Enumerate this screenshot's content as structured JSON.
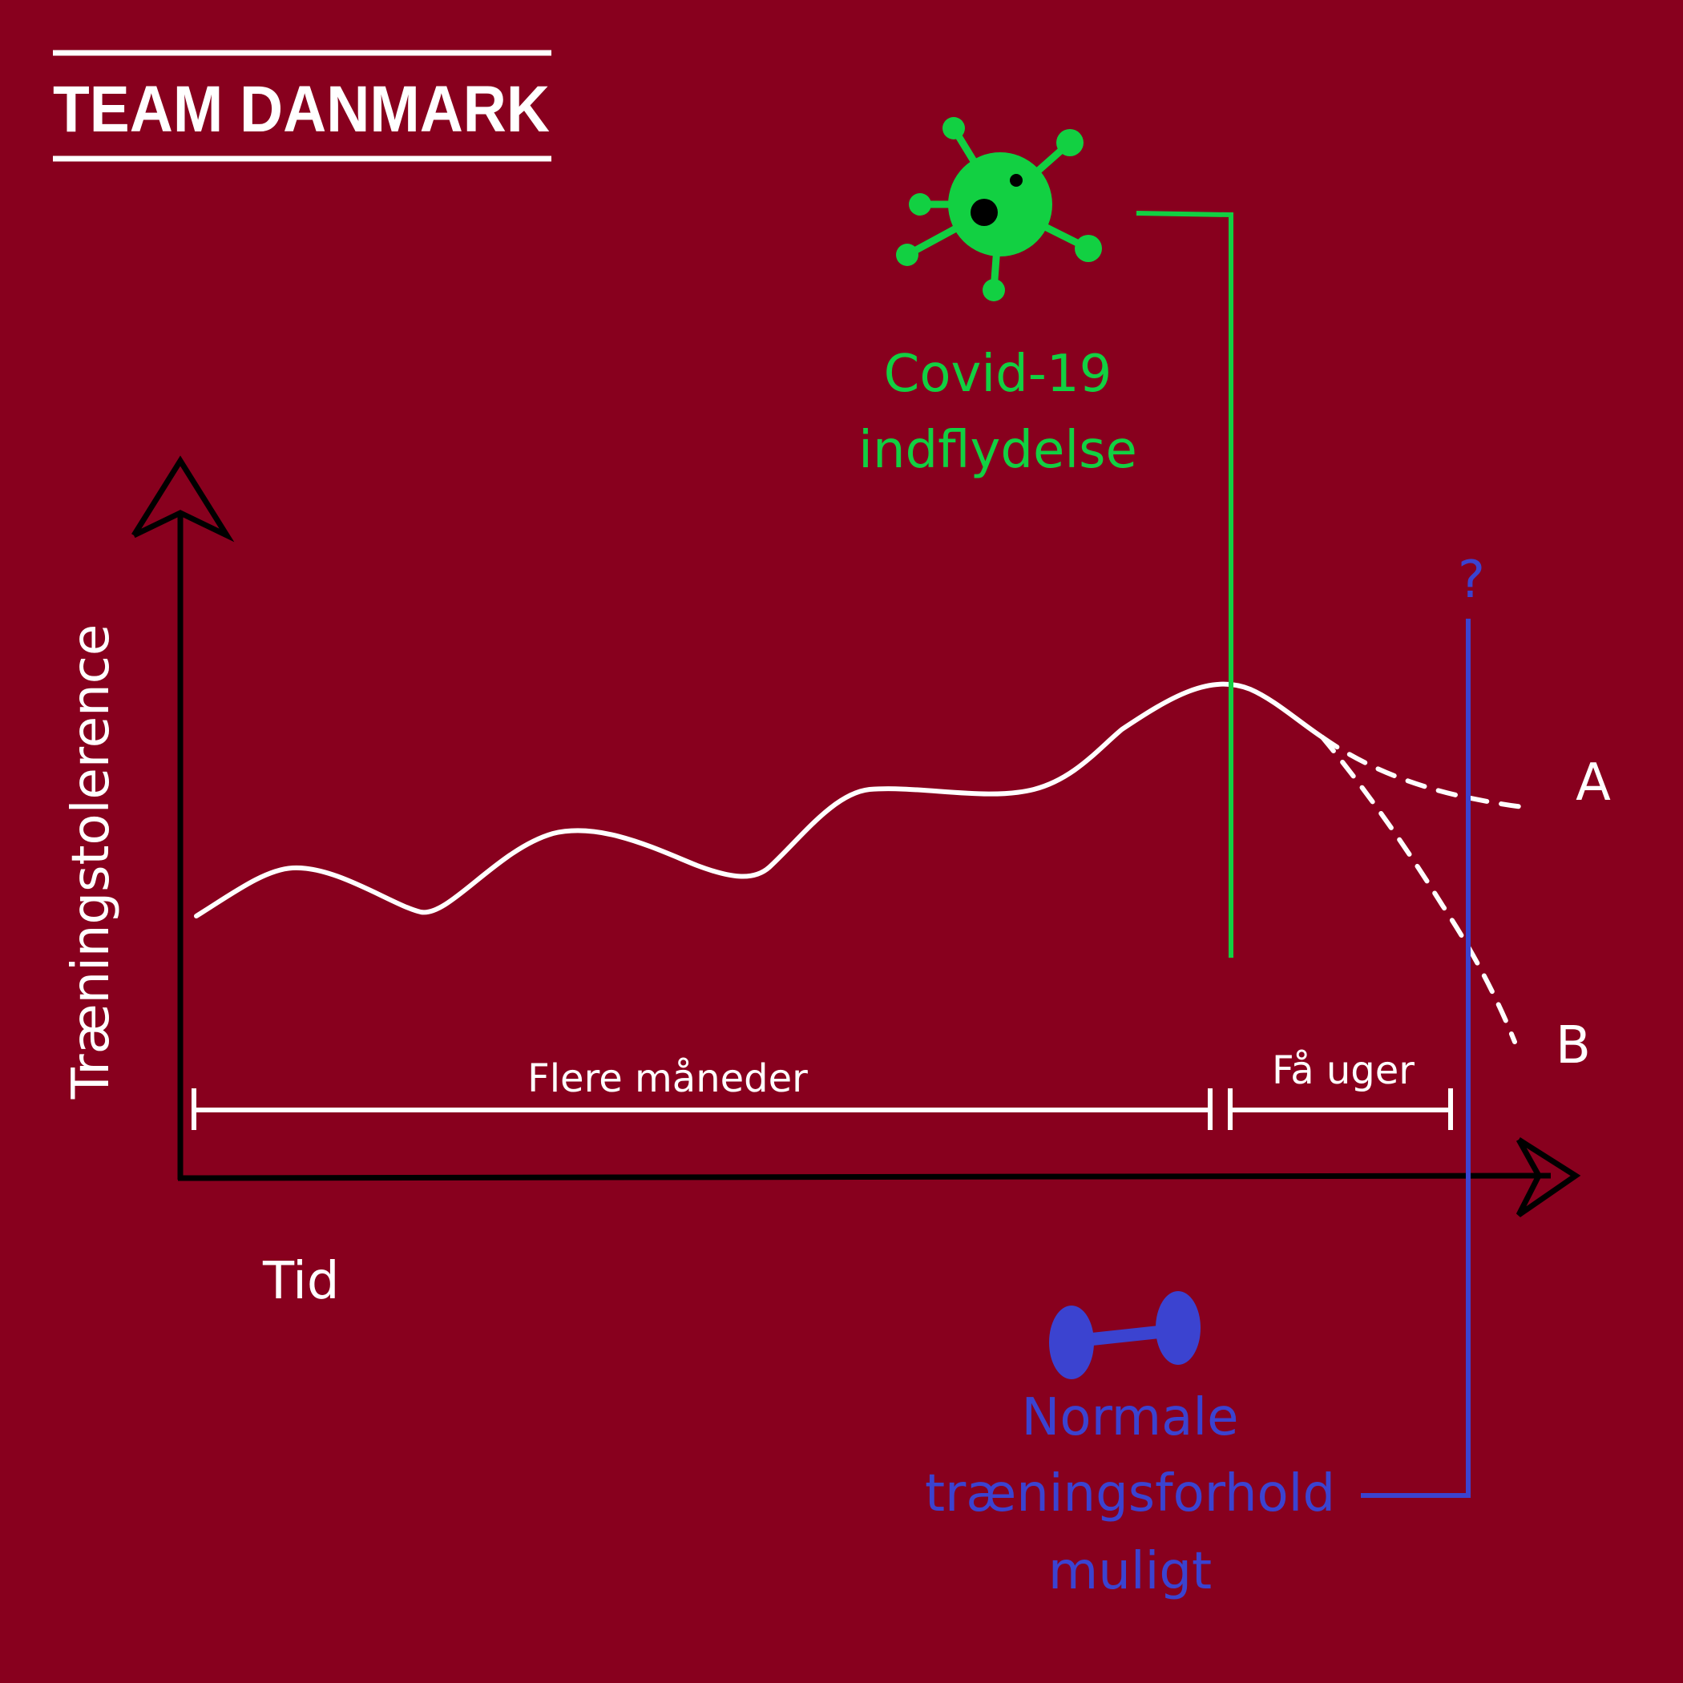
{
  "brand": {
    "logo_text": "TEAM DANMARK"
  },
  "colors": {
    "background": "#88001e",
    "curve": "#ffffff",
    "axis": "#000000",
    "covid": "#12d042",
    "training": "#3b43d0"
  },
  "icons": {
    "covid": "virus-icon",
    "training": "dumbbell-icon"
  },
  "axes": {
    "y_label": "Træningstolerence",
    "x_label": "Tid"
  },
  "intervals": {
    "long": "Flere måneder",
    "short": "Få uger"
  },
  "covid": {
    "line1": "Covid-19",
    "line2": "indflydelse"
  },
  "training": {
    "line1": "Normale",
    "line2": "træningsforhold",
    "line3": "muligt",
    "unknown_marker": "?"
  },
  "scenarios": {
    "a": "A",
    "b": "B"
  }
}
